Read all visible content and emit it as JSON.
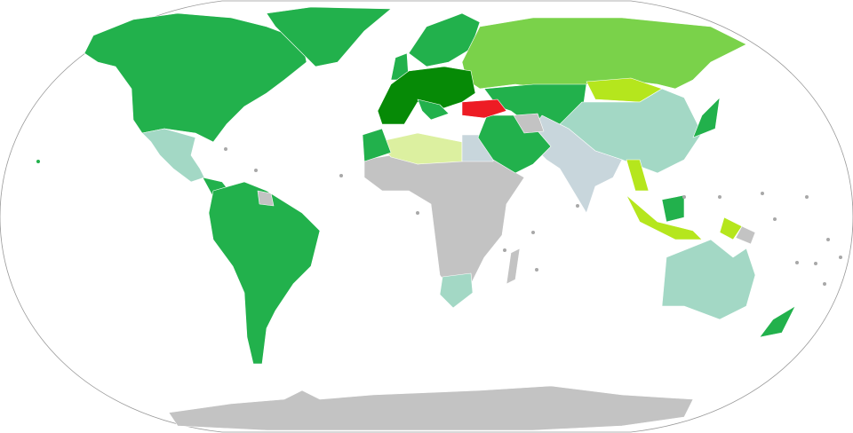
{
  "map": {
    "projection": "Robinson",
    "colors": {
      "dark_green": "#068a06",
      "green": "#22b14c",
      "light_green": "#7ad24a",
      "yellow_green": "#b5e61d",
      "pale_yellow": "#dcf0a0",
      "teal": "#a3d8c5",
      "blue_grey": "#c8d6dc",
      "grey": "#c3c3c3",
      "red": "#ed1c24",
      "outline": "#999999"
    }
  }
}
